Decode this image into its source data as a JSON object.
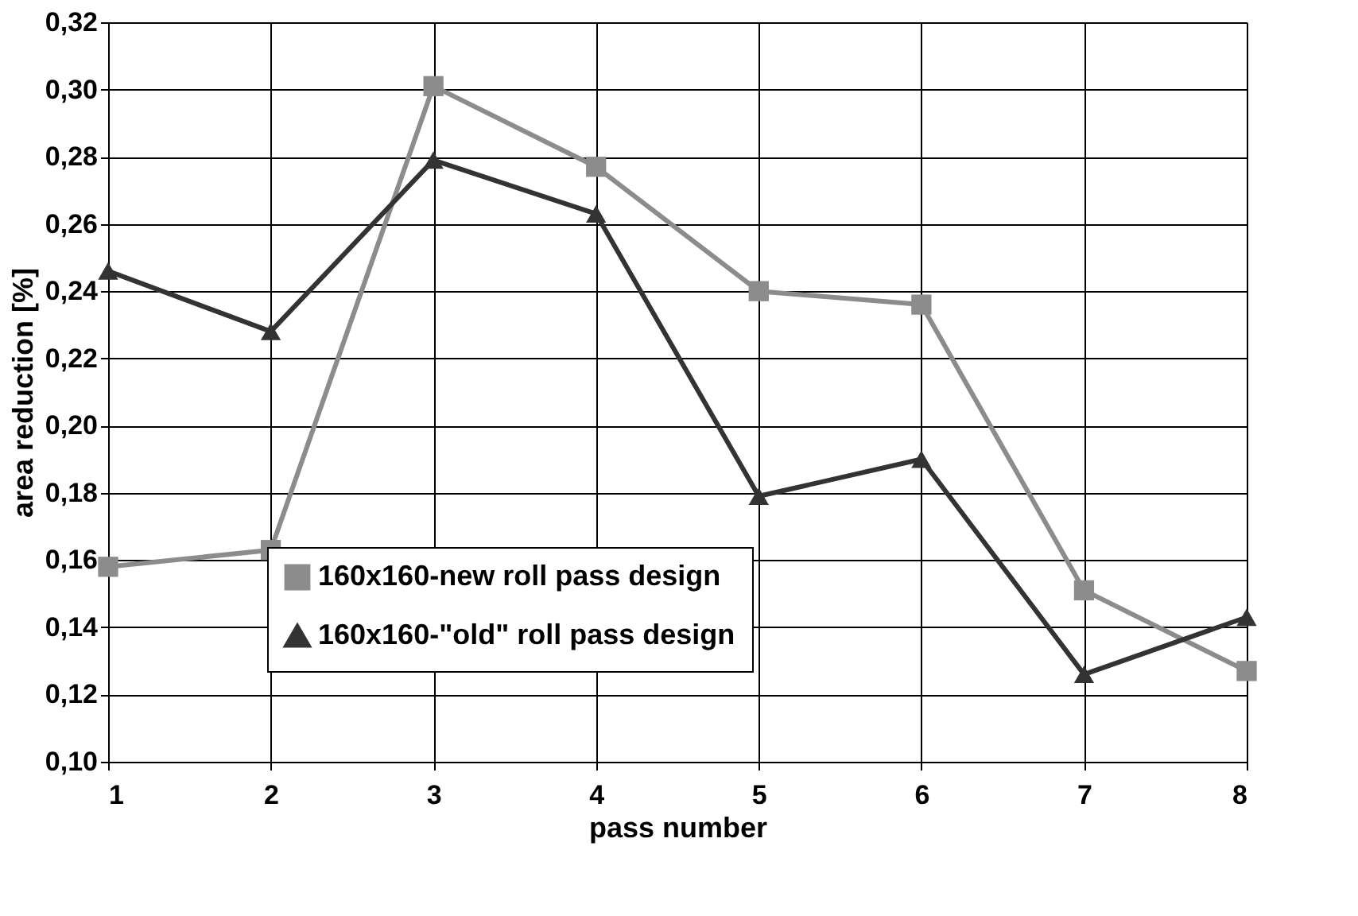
{
  "chart_data": {
    "type": "line",
    "xlabel": "pass number",
    "ylabel": "area reduction [%]",
    "x": [
      1,
      2,
      3,
      4,
      5,
      6,
      7,
      8
    ],
    "xlim": [
      1,
      8
    ],
    "xticks": [
      1,
      2,
      3,
      4,
      5,
      6,
      7,
      8
    ],
    "ylim": [
      0.1,
      0.32
    ],
    "yticks": [
      {
        "value": 0.1,
        "label": "0,10"
      },
      {
        "value": 0.12,
        "label": "0,12"
      },
      {
        "value": 0.14,
        "label": "0,14"
      },
      {
        "value": 0.16,
        "label": "0,16"
      },
      {
        "value": 0.18,
        "label": "0,18"
      },
      {
        "value": 0.2,
        "label": "0,20"
      },
      {
        "value": 0.22,
        "label": "0,22"
      },
      {
        "value": 0.24,
        "label": "0,24"
      },
      {
        "value": 0.26,
        "label": "0,26"
      },
      {
        "value": 0.28,
        "label": "0,28"
      },
      {
        "value": 0.3,
        "label": "0,30"
      },
      {
        "value": 0.32,
        "label": "0,32"
      }
    ],
    "grid": true,
    "legend": "bottom left",
    "line_style": "solid",
    "series": [
      {
        "name": "160x160-new roll pass design",
        "color": "#8c8c8c",
        "marker": "square",
        "values": [
          0.158,
          0.163,
          0.301,
          0.277,
          0.24,
          0.236,
          0.151,
          0.127
        ]
      },
      {
        "name": "160x160-\"old\" roll pass design",
        "color": "#333333",
        "marker": "triangle",
        "values": [
          0.246,
          0.228,
          0.279,
          0.263,
          0.179,
          0.19,
          0.126,
          0.143
        ]
      }
    ]
  }
}
